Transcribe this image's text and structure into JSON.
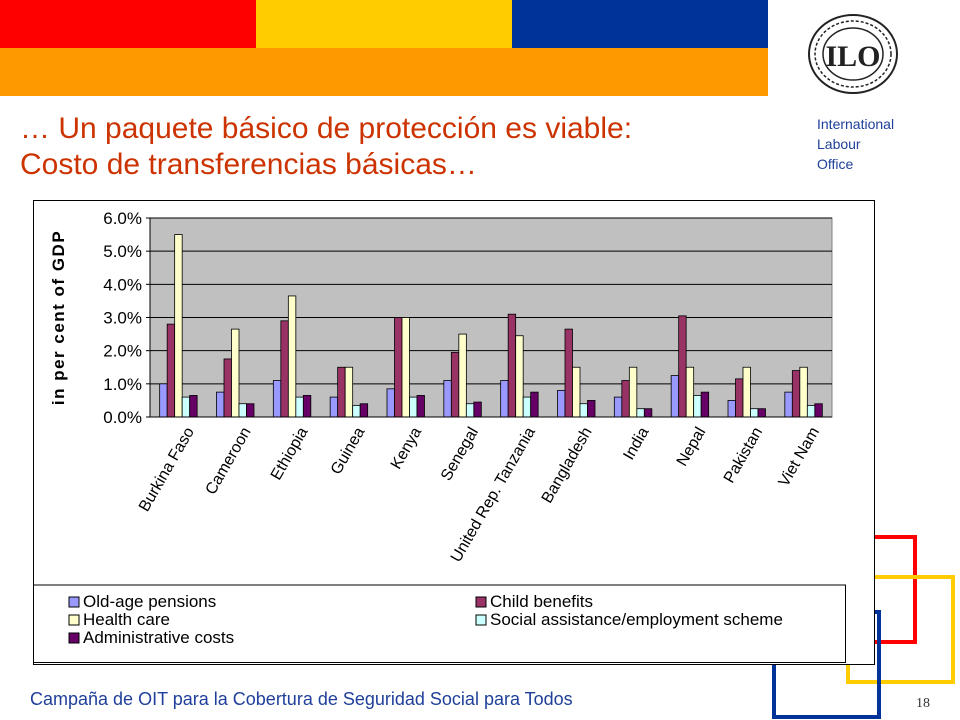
{
  "colors": {
    "band_red": "#ff0000",
    "band_yellow": "#ffcc00",
    "band_blue": "#003399",
    "band_orange": "#ff9900",
    "title": "#cc3300",
    "org_text": "#1f3f9a",
    "plot_bg": "#c0c0c0"
  },
  "slide": {
    "title_line1": "… Un paquete básico de protección es viable:",
    "title_line2": "Costo de transferencias básicas…",
    "org_line1": "International",
    "org_line2": "Labour",
    "org_line3": "Office",
    "logo_text": "ILO",
    "footer": "Campaña de OIT para la Cobertura de Seguridad Social para Todos",
    "page_number": "18"
  },
  "chart_data": {
    "type": "bar",
    "title": "",
    "xlabel": "",
    "ylabel": "in per cent of GDP",
    "ylim": [
      0,
      6
    ],
    "yticks": [
      "0.0%",
      "1.0%",
      "2.0%",
      "3.0%",
      "4.0%",
      "5.0%",
      "6.0%"
    ],
    "grid": true,
    "legend_position": "bottom",
    "categories": [
      "Burkina Faso",
      "Cameroon",
      "Ethiopia",
      "Guinea",
      "Kenya",
      "Senegal",
      "United Rep. Tanzania",
      "Bangladesh",
      "India",
      "Nepal",
      "Pakistan",
      "Viet Nam"
    ],
    "series": [
      {
        "name": "Old-age pensions",
        "color": "#9999ff",
        "values": [
          1.0,
          0.75,
          1.1,
          0.6,
          0.85,
          1.1,
          1.1,
          0.8,
          0.6,
          1.25,
          0.5,
          0.75
        ]
      },
      {
        "name": "Child benefits",
        "color": "#993366",
        "values": [
          2.8,
          1.75,
          2.9,
          1.5,
          3.0,
          1.95,
          3.1,
          2.65,
          1.1,
          3.05,
          1.15,
          1.4
        ]
      },
      {
        "name": "Health care",
        "color": "#ffffcc",
        "values": [
          5.5,
          2.65,
          3.65,
          1.5,
          3.0,
          2.5,
          2.45,
          1.5,
          1.5,
          1.5,
          1.5,
          1.5
        ]
      },
      {
        "name": "Social assistance/employment scheme",
        "color": "#ccffff",
        "values": [
          0.6,
          0.4,
          0.6,
          0.35,
          0.6,
          0.4,
          0.6,
          0.4,
          0.25,
          0.65,
          0.25,
          0.35
        ]
      },
      {
        "name": "Administrative costs",
        "color": "#660066",
        "values": [
          0.65,
          0.4,
          0.65,
          0.4,
          0.65,
          0.45,
          0.75,
          0.5,
          0.25,
          0.75,
          0.25,
          0.4
        ]
      }
    ]
  }
}
